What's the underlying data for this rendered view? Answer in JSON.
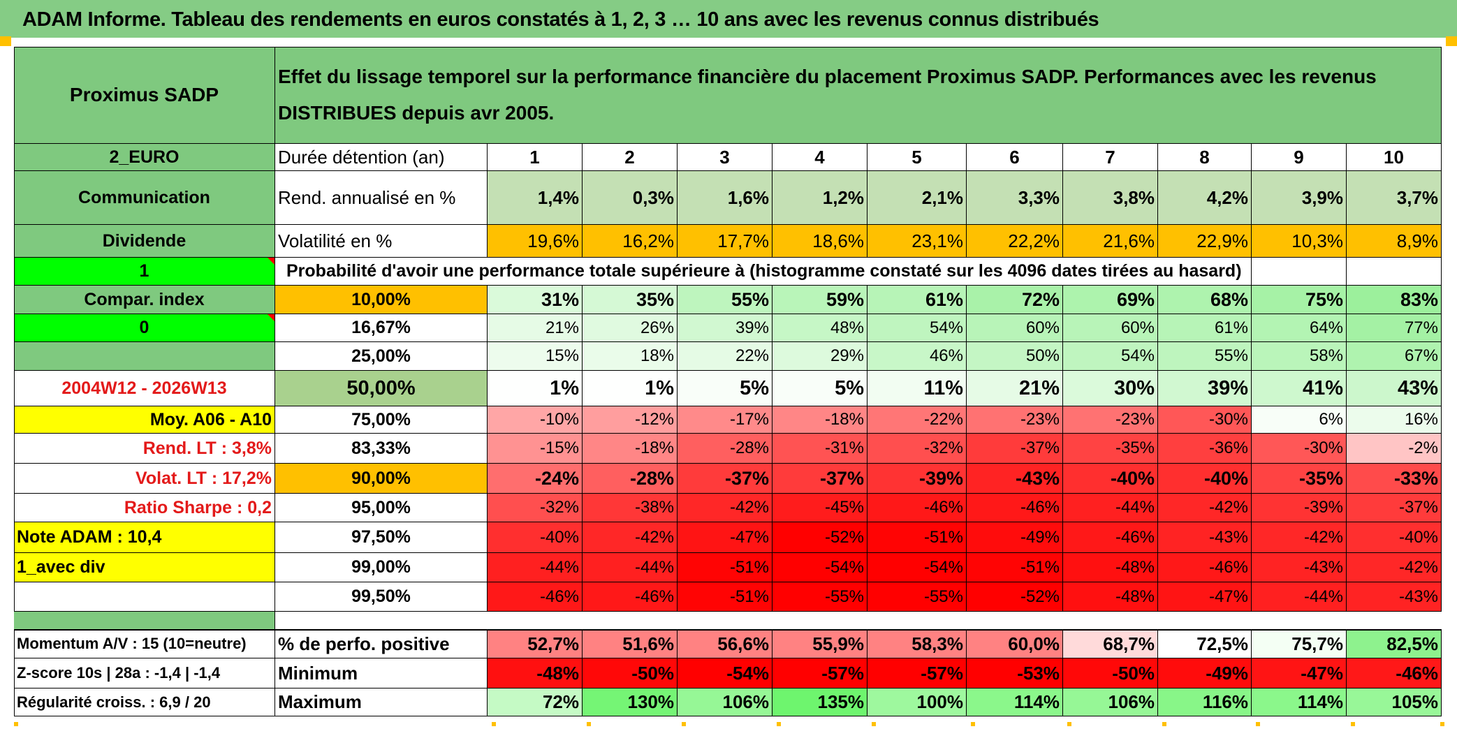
{
  "title": "ADAM Informe. Tableau des rendements en euros constatés à 1, 2, 3 … 10 ans avec les revenus connus distribués",
  "side": {
    "name": "Proximus SADP",
    "currency": "2_EURO",
    "communication": "Communication",
    "dividende": "Dividende",
    "flag1": "1",
    "compar_index": "Compar. index",
    "flag0": "0",
    "period": "2004W12 - 2026W13",
    "moy": "Moy. A06 - A10",
    "rend_lt": "Rend. LT :   3,8%",
    "volat_lt": "Volat. LT :   17,2%",
    "sharpe": "Ratio Sharpe :    0,2",
    "note": "Note ADAM : 10,4",
    "avec_div": "1_avec div",
    "momentum": "Momentum A/V : 15 (10=neutre)",
    "zscore": "Z-score 10s | 28a : -1,4 | -1,4",
    "regularite": "Régularité croiss. : 6,9 / 20"
  },
  "header": {
    "text1": "Effet du lissage temporel sur la performance financière du placement Proximus SADP. Performances avec les revenus",
    "text2": "DISTRIBUES depuis avr 2005."
  },
  "labels": {
    "duree": "Durée détention (an)",
    "rend": "Rend. annualisé en %",
    "vol": "Volatilité en %",
    "proba": "Probabilité d'avoir une performance totale supérieure à (histogramme constaté sur les 4096 dates tirées au hasard)",
    "pct_pos": "% de perfo. positive",
    "minimum": "Minimum",
    "maximum": "Maximum"
  },
  "years": [
    "1",
    "2",
    "3",
    "4",
    "5",
    "6",
    "7",
    "8",
    "9",
    "10"
  ],
  "rend": [
    "1,4%",
    "0,3%",
    "1,6%",
    "1,2%",
    "2,1%",
    "3,3%",
    "3,8%",
    "4,2%",
    "3,9%",
    "3,7%"
  ],
  "vol": [
    "19,6%",
    "16,2%",
    "17,7%",
    "18,6%",
    "23,1%",
    "22,2%",
    "21,6%",
    "22,9%",
    "10,3%",
    "8,9%"
  ],
  "prob_rows": [
    {
      "level": "10,00%",
      "vals": [
        "31%",
        "35%",
        "55%",
        "59%",
        "61%",
        "72%",
        "69%",
        "68%",
        "75%",
        "83%"
      ]
    },
    {
      "level": "16,67%",
      "vals": [
        "21%",
        "26%",
        "39%",
        "48%",
        "54%",
        "60%",
        "60%",
        "61%",
        "64%",
        "77%"
      ]
    },
    {
      "level": "25,00%",
      "vals": [
        "15%",
        "18%",
        "22%",
        "29%",
        "46%",
        "50%",
        "54%",
        "55%",
        "58%",
        "67%"
      ]
    },
    {
      "level": "50,00%",
      "vals": [
        "1%",
        "1%",
        "5%",
        "5%",
        "11%",
        "21%",
        "30%",
        "39%",
        "41%",
        "43%"
      ]
    },
    {
      "level": "75,00%",
      "vals": [
        "-10%",
        "-12%",
        "-17%",
        "-18%",
        "-22%",
        "-23%",
        "-23%",
        "-30%",
        "6%",
        "16%"
      ]
    },
    {
      "level": "83,33%",
      "vals": [
        "-15%",
        "-18%",
        "-28%",
        "-31%",
        "-32%",
        "-37%",
        "-35%",
        "-36%",
        "-30%",
        "-2%"
      ]
    },
    {
      "level": "90,00%",
      "vals": [
        "-24%",
        "-28%",
        "-37%",
        "-37%",
        "-39%",
        "-43%",
        "-40%",
        "-40%",
        "-35%",
        "-33%"
      ]
    },
    {
      "level": "95,00%",
      "vals": [
        "-32%",
        "-38%",
        "-42%",
        "-45%",
        "-46%",
        "-46%",
        "-44%",
        "-42%",
        "-39%",
        "-37%"
      ]
    },
    {
      "level": "97,50%",
      "vals": [
        "-40%",
        "-42%",
        "-47%",
        "-52%",
        "-51%",
        "-49%",
        "-46%",
        "-43%",
        "-42%",
        "-40%"
      ]
    },
    {
      "level": "99,00%",
      "vals": [
        "-44%",
        "-44%",
        "-51%",
        "-54%",
        "-54%",
        "-51%",
        "-48%",
        "-46%",
        "-43%",
        "-42%"
      ]
    },
    {
      "level": "99,50%",
      "vals": [
        "-46%",
        "-46%",
        "-51%",
        "-55%",
        "-55%",
        "-52%",
        "-48%",
        "-47%",
        "-44%",
        "-43%"
      ]
    }
  ],
  "pct_pos": [
    "52,7%",
    "51,6%",
    "56,6%",
    "55,9%",
    "58,3%",
    "60,0%",
    "68,7%",
    "72,5%",
    "75,7%",
    "82,5%"
  ],
  "minimum": [
    "-48%",
    "-50%",
    "-54%",
    "-57%",
    "-57%",
    "-53%",
    "-50%",
    "-49%",
    "-47%",
    "-46%"
  ],
  "maximum": [
    "72%",
    "130%",
    "106%",
    "135%",
    "100%",
    "114%",
    "106%",
    "116%",
    "114%",
    "105%"
  ],
  "colors": {
    "title_green": "#85cc85",
    "block_green": "#7fc97f",
    "light_green": "#c4e0b4",
    "orange": "#ffc000",
    "bright_green": "#00ff00",
    "yellow": "#ffff00",
    "red_text": "#e31a1a",
    "deep_red": "#ff0000"
  }
}
